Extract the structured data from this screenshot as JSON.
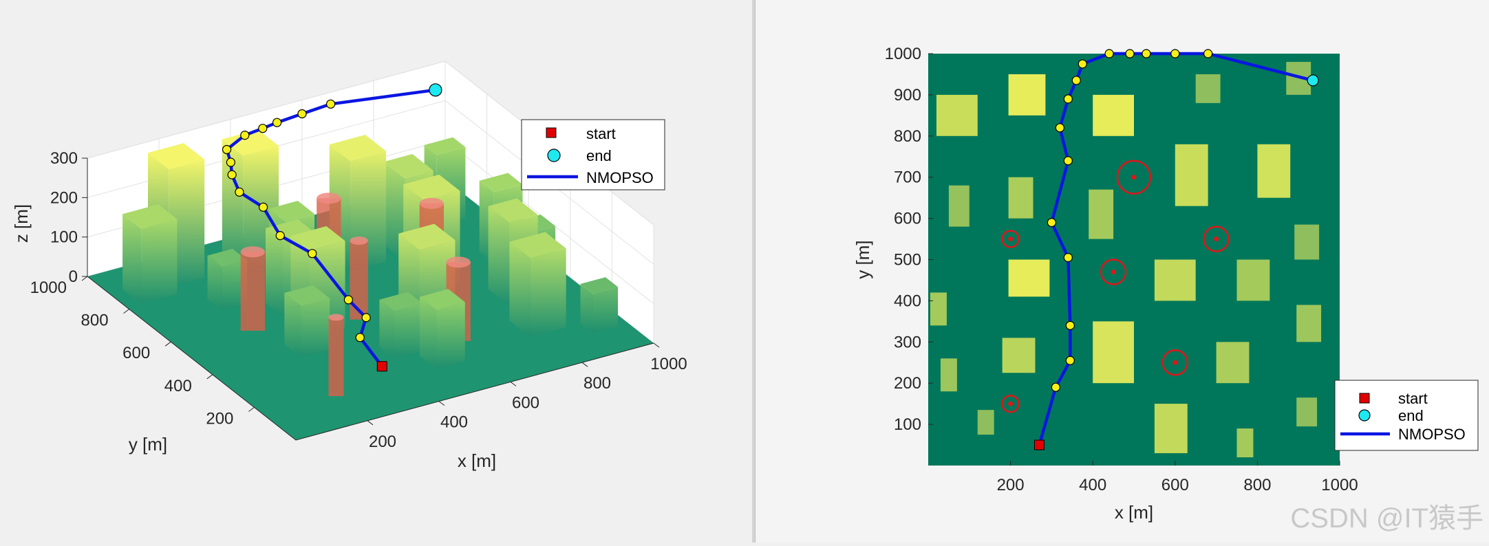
{
  "chart_data": [
    {
      "type": "3d-surface-with-obstacles",
      "xlabel": "x [m]",
      "ylabel": "y [m]",
      "zlabel": "z [m]",
      "xlim": [
        0,
        1000
      ],
      "ylim": [
        0,
        1000
      ],
      "zlim": [
        0,
        300
      ],
      "xticks": [
        200,
        400,
        600,
        800,
        1000
      ],
      "yticks": [
        200,
        400,
        600,
        800,
        1000
      ],
      "zticks": [
        0,
        100,
        200,
        300
      ],
      "grid": true,
      "legend": {
        "placement": "right-of-axes",
        "entries": [
          {
            "name": "start",
            "color": "#e00000",
            "marker": "square"
          },
          {
            "name": "end",
            "color": "#1ee8f0",
            "marker": "circle"
          },
          {
            "name": "NMOPSO",
            "color": "#0a16e0",
            "marker": "line"
          }
        ]
      },
      "buildings": [
        {
          "x": 40,
          "y": 810,
          "w": 100,
          "d": 90,
          "h": 190
        },
        {
          "x": 190,
          "y": 680,
          "w": 70,
          "d": 70,
          "h": 110
        },
        {
          "x": 230,
          "y": 370,
          "w": 80,
          "d": 80,
          "h": 130
        },
        {
          "x": 140,
          "y": 850,
          "w": 100,
          "d": 100,
          "h": 300
        },
        {
          "x": 330,
          "y": 820,
          "w": 100,
          "d": 100,
          "h": 300
        },
        {
          "x": 300,
          "y": 580,
          "w": 90,
          "d": 80,
          "h": 190
        },
        {
          "x": 300,
          "y": 450,
          "w": 100,
          "d": 90,
          "h": 220
        },
        {
          "x": 420,
          "y": 250,
          "w": 80,
          "d": 70,
          "h": 120
        },
        {
          "x": 380,
          "y": 700,
          "w": 80,
          "d": 80,
          "h": 170
        },
        {
          "x": 560,
          "y": 700,
          "w": 100,
          "d": 100,
          "h": 280
        },
        {
          "x": 520,
          "y": 300,
          "w": 100,
          "d": 100,
          "h": 230
        },
        {
          "x": 480,
          "y": 150,
          "w": 80,
          "d": 80,
          "h": 150
        },
        {
          "x": 650,
          "y": 500,
          "w": 100,
          "d": 100,
          "h": 240
        },
        {
          "x": 700,
          "y": 680,
          "w": 80,
          "d": 100,
          "h": 210
        },
        {
          "x": 800,
          "y": 350,
          "w": 80,
          "d": 100,
          "h": 210
        },
        {
          "x": 760,
          "y": 180,
          "w": 100,
          "d": 100,
          "h": 200
        },
        {
          "x": 880,
          "y": 560,
          "w": 80,
          "d": 70,
          "h": 180
        },
        {
          "x": 900,
          "y": 420,
          "w": 70,
          "d": 70,
          "h": 130
        },
        {
          "x": 860,
          "y": 800,
          "w": 80,
          "d": 60,
          "h": 180
        },
        {
          "x": 900,
          "y": 120,
          "w": 70,
          "d": 60,
          "h": 100
        }
      ],
      "threats": [
        {
          "x": 200,
          "y": 550,
          "r": 40,
          "h": 200
        },
        {
          "x": 500,
          "y": 700,
          "r": 40,
          "h": 200
        },
        {
          "x": 700,
          "y": 550,
          "r": 40,
          "h": 200
        },
        {
          "x": 450,
          "y": 470,
          "r": 30,
          "h": 200
        },
        {
          "x": 600,
          "y": 250,
          "r": 40,
          "h": 200
        },
        {
          "x": 200,
          "y": 150,
          "r": 25,
          "h": 200
        }
      ],
      "path": [
        {
          "x": 270,
          "y": 50,
          "z": 100
        },
        {
          "x": 290,
          "y": 190,
          "z": 110
        },
        {
          "x": 345,
          "y": 255,
          "z": 120
        },
        {
          "x": 345,
          "y": 340,
          "z": 130
        },
        {
          "x": 340,
          "y": 505,
          "z": 180
        },
        {
          "x": 300,
          "y": 590,
          "z": 200
        },
        {
          "x": 340,
          "y": 740,
          "z": 200
        },
        {
          "x": 320,
          "y": 820,
          "z": 210
        },
        {
          "x": 340,
          "y": 890,
          "z": 220
        },
        {
          "x": 360,
          "y": 930,
          "z": 230
        },
        {
          "x": 375,
          "y": 975,
          "z": 240
        },
        {
          "x": 440,
          "y": 1000,
          "z": 250
        },
        {
          "x": 490,
          "y": 1000,
          "z": 255
        },
        {
          "x": 530,
          "y": 1000,
          "z": 260
        },
        {
          "x": 600,
          "y": 1000,
          "z": 265
        },
        {
          "x": 680,
          "y": 1000,
          "z": 270
        },
        {
          "x": 935,
          "y": 935,
          "z": 270
        }
      ]
    },
    {
      "type": "top-view-map",
      "xlabel": "x [m]",
      "ylabel": "y [m]",
      "xlim": [
        0,
        1000
      ],
      "ylim": [
        0,
        1000
      ],
      "xticks": [
        200,
        400,
        600,
        800,
        1000
      ],
      "yticks": [
        100,
        200,
        300,
        400,
        500,
        600,
        700,
        800,
        900,
        1000
      ],
      "legend": {
        "placement": "bottom-right",
        "entries": [
          {
            "name": "start",
            "color": "#e00000",
            "marker": "square"
          },
          {
            "name": "end",
            "color": "#1ee8f0",
            "marker": "circle"
          },
          {
            "name": "NMOPSO",
            "color": "#0a16e0",
            "marker": "line"
          }
        ]
      },
      "rects": [
        {
          "x": 20,
          "y": 800,
          "w": 100,
          "h": 100,
          "v": 0.75
        },
        {
          "x": 195,
          "y": 850,
          "w": 90,
          "h": 100,
          "v": 0.95
        },
        {
          "x": 400,
          "y": 800,
          "w": 100,
          "h": 100,
          "v": 0.95
        },
        {
          "x": 650,
          "y": 880,
          "w": 60,
          "h": 70,
          "v": 0.35
        },
        {
          "x": 870,
          "y": 900,
          "w": 60,
          "h": 80,
          "v": 0.35
        },
        {
          "x": 50,
          "y": 580,
          "w": 50,
          "h": 100,
          "v": 0.4
        },
        {
          "x": 195,
          "y": 600,
          "w": 60,
          "h": 100,
          "v": 0.55
        },
        {
          "x": 390,
          "y": 550,
          "w": 60,
          "h": 120,
          "v": 0.5
        },
        {
          "x": 600,
          "y": 630,
          "w": 80,
          "h": 150,
          "v": 0.75
        },
        {
          "x": 800,
          "y": 650,
          "w": 80,
          "h": 130,
          "v": 0.8
        },
        {
          "x": 890,
          "y": 500,
          "w": 60,
          "h": 85,
          "v": 0.35
        },
        {
          "x": 195,
          "y": 410,
          "w": 100,
          "h": 90,
          "v": 0.95
        },
        {
          "x": 550,
          "y": 400,
          "w": 100,
          "h": 100,
          "v": 0.7
        },
        {
          "x": 750,
          "y": 400,
          "w": 80,
          "h": 100,
          "v": 0.5
        },
        {
          "x": 5,
          "y": 340,
          "w": 40,
          "h": 80,
          "v": 0.5
        },
        {
          "x": 895,
          "y": 300,
          "w": 60,
          "h": 90,
          "v": 0.45
        },
        {
          "x": 180,
          "y": 225,
          "w": 80,
          "h": 85,
          "v": 0.65
        },
        {
          "x": 400,
          "y": 200,
          "w": 100,
          "h": 150,
          "v": 0.85
        },
        {
          "x": 700,
          "y": 200,
          "w": 80,
          "h": 100,
          "v": 0.55
        },
        {
          "x": 30,
          "y": 180,
          "w": 40,
          "h": 80,
          "v": 0.45
        },
        {
          "x": 120,
          "y": 75,
          "w": 40,
          "h": 60,
          "v": 0.35
        },
        {
          "x": 550,
          "y": 30,
          "w": 80,
          "h": 120,
          "v": 0.7
        },
        {
          "x": 750,
          "y": 20,
          "w": 40,
          "h": 70,
          "v": 0.5
        },
        {
          "x": 895,
          "y": 95,
          "w": 50,
          "h": 70,
          "v": 0.35
        }
      ],
      "threats": [
        {
          "x": 200,
          "y": 550,
          "r": 20
        },
        {
          "x": 500,
          "y": 700,
          "r": 40
        },
        {
          "x": 700,
          "y": 550,
          "r": 30
        },
        {
          "x": 450,
          "y": 470,
          "r": 30
        },
        {
          "x": 600,
          "y": 250,
          "r": 30
        },
        {
          "x": 200,
          "y": 150,
          "r": 20
        }
      ],
      "path": [
        {
          "x": 270,
          "y": 50
        },
        {
          "x": 310,
          "y": 190
        },
        {
          "x": 345,
          "y": 255
        },
        {
          "x": 345,
          "y": 340
        },
        {
          "x": 340,
          "y": 505
        },
        {
          "x": 300,
          "y": 590
        },
        {
          "x": 340,
          "y": 740
        },
        {
          "x": 320,
          "y": 820
        },
        {
          "x": 340,
          "y": 890
        },
        {
          "x": 360,
          "y": 935
        },
        {
          "x": 375,
          "y": 975
        },
        {
          "x": 440,
          "y": 1000
        },
        {
          "x": 490,
          "y": 1000
        },
        {
          "x": 530,
          "y": 1000
        },
        {
          "x": 600,
          "y": 1000
        },
        {
          "x": 680,
          "y": 1000
        },
        {
          "x": 935,
          "y": 935
        }
      ]
    }
  ],
  "legend_labels": {
    "start": "start",
    "end": "end",
    "path": "NMOPSO"
  },
  "watermark": "CSDN @IT猿手"
}
